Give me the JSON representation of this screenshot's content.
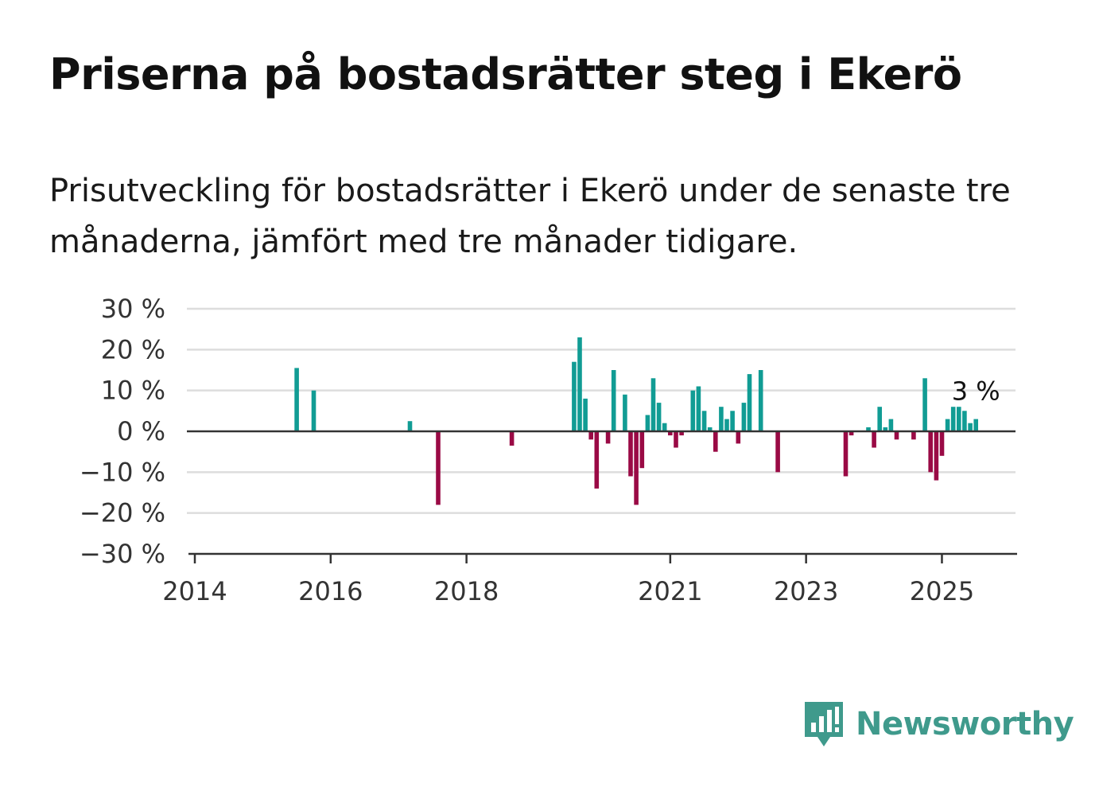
{
  "title": "Priserna på bostadsrätter steg i Ekerö",
  "subtitle": "Prisutveckling för bostadsrätter i Ekerö under de senaste tre månaderna, jämfört med tre månader tidigare.",
  "brand": {
    "name": "Newsworthy",
    "color": "#3f9a8c"
  },
  "colors": {
    "positive": "#119c94",
    "negative": "#9a0a45",
    "grid": "#dddddd",
    "axis": "#333333"
  },
  "chart_data": {
    "type": "bar",
    "title": "Priserna på bostadsrätter steg i Ekerö",
    "subtitle": "Prisutveckling för bostadsrätter i Ekerö under de senaste tre månaderna, jämfört med tre månader tidigare.",
    "xlabel": "",
    "ylabel": "",
    "xlim": [
      "2014-01",
      "2026-02"
    ],
    "ylim": [
      -30,
      30
    ],
    "yticks": [
      30,
      20,
      10,
      0,
      -10,
      -20,
      -30
    ],
    "ytick_labels": [
      "30 %",
      "20 %",
      "10 %",
      "0 %",
      "−10 %",
      "−20 %",
      "−30 %"
    ],
    "xticks": [
      "2014",
      "2016",
      "2018",
      "2021",
      "2023",
      "2025"
    ],
    "grid": true,
    "annotation": {
      "date": "2025-07",
      "text": "3 %"
    },
    "series": [
      {
        "dates": [
          "2015-07",
          "2015-10",
          "2017-03",
          "2017-08",
          "2018-09",
          "2019-08",
          "2019-09",
          "2019-10",
          "2019-11",
          "2019-12",
          "2020-02",
          "2020-03",
          "2020-05",
          "2020-06",
          "2020-07",
          "2020-08",
          "2020-09",
          "2020-10",
          "2020-11",
          "2020-12",
          "2021-01",
          "2021-02",
          "2021-03",
          "2021-05",
          "2021-06",
          "2021-07",
          "2021-08",
          "2021-09",
          "2021-10",
          "2021-11",
          "2021-12",
          "2022-01",
          "2022-02",
          "2022-03",
          "2022-05",
          "2022-08",
          "2023-08",
          "2023-09",
          "2023-12",
          "2024-01",
          "2024-02",
          "2024-03",
          "2024-04",
          "2024-05",
          "2024-08",
          "2024-10",
          "2024-11",
          "2024-12",
          "2025-01",
          "2025-02",
          "2025-03",
          "2025-04",
          "2025-05",
          "2025-06",
          "2025-07"
        ],
        "values": [
          15.5,
          10,
          2.5,
          -18,
          -3.5,
          17,
          23,
          8,
          -2,
          -14,
          -3,
          15,
          9,
          -11,
          -18,
          -9,
          4,
          13,
          7,
          2,
          -1,
          -4,
          -1,
          10,
          11,
          5,
          1,
          -5,
          6,
          3,
          5,
          -3,
          7,
          14,
          15,
          -10,
          -11,
          -1,
          1,
          -4,
          6,
          1,
          3,
          -2,
          -2,
          13,
          -10,
          -12,
          -6,
          3,
          6,
          6,
          5,
          2,
          3
        ]
      }
    ]
  }
}
